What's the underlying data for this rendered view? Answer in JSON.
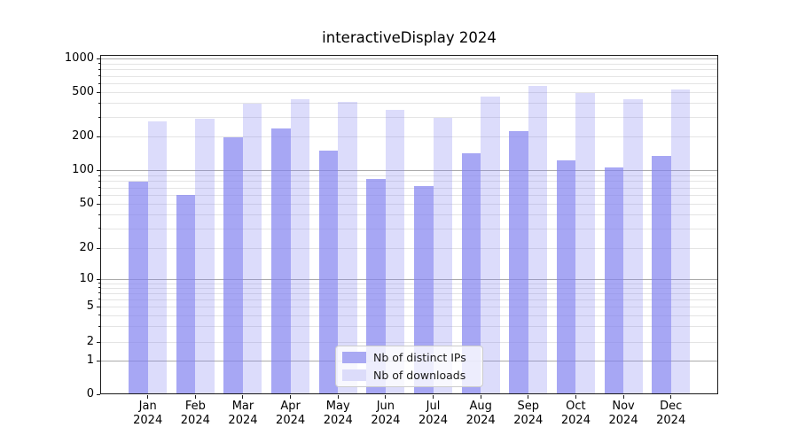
{
  "chart_data": {
    "type": "bar",
    "title": "interactiveDisplay 2024",
    "categories": [
      "Jan",
      "Feb",
      "Mar",
      "Apr",
      "May",
      "Jun",
      "Jul",
      "Aug",
      "Sep",
      "Oct",
      "Nov",
      "Dec"
    ],
    "year": "2024",
    "series": [
      {
        "name": "Nb of distinct IPs",
        "fill": "rgba(130,130,240,0.70)",
        "swatch": "#a9a9f3",
        "values": [
          79,
          60,
          197,
          238,
          150,
          84,
          72,
          141,
          225,
          123,
          106,
          135
        ]
      },
      {
        "name": "Nb of downloads",
        "fill": "rgba(130,130,240,0.28)",
        "swatch": "#dcdcfa",
        "values": [
          275,
          289,
          397,
          434,
          411,
          348,
          295,
          459,
          565,
          493,
          432,
          528
        ]
      }
    ],
    "yscale": "symlog",
    "ylim": [
      0,
      1000
    ],
    "yticks": [
      0,
      1,
      2,
      5,
      10,
      20,
      50,
      100,
      200,
      500,
      1000
    ],
    "grid": "both",
    "legend_position": "lower center",
    "colors": {
      "grid_major": "#ababab",
      "grid_minor": "#e4e4e4",
      "spine": "#1a1a1a",
      "text": "#000000"
    }
  }
}
